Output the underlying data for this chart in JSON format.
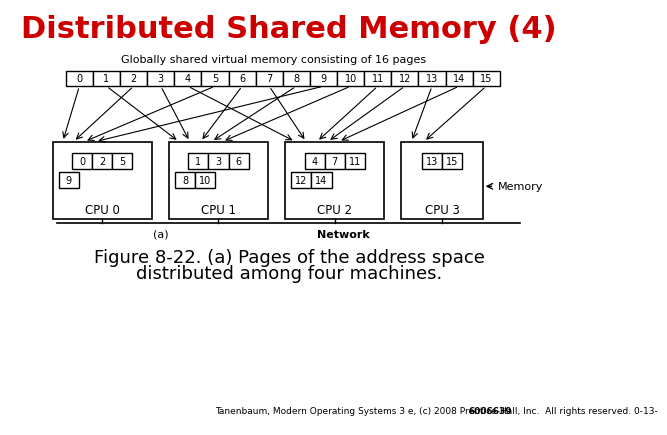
{
  "title": "Distributed Shared Memory (4)",
  "title_color": "#cc0000",
  "title_fontsize": 22,
  "global_label": "Globally shared virtual memory consisting of 16 pages",
  "pages": [
    "0",
    "1",
    "2",
    "3",
    "4",
    "5",
    "6",
    "7",
    "8",
    "9",
    "10",
    "11",
    "12",
    "13",
    "14",
    "15"
  ],
  "cpu_labels": [
    "CPU 0",
    "CPU 1",
    "CPU 2",
    "CPU 3"
  ],
  "cpu_page_rows": [
    [
      [
        "0",
        "2",
        "5"
      ],
      [
        "9"
      ]
    ],
    [
      [
        "1",
        "3",
        "6"
      ],
      [
        "8",
        "10"
      ]
    ],
    [
      [
        "4",
        "7",
        "11"
      ],
      [
        "12",
        "14"
      ]
    ],
    [
      [
        "13",
        "15"
      ],
      []
    ]
  ],
  "page_to_cpu": {
    "0": 0,
    "2": 0,
    "5": 0,
    "9": 0,
    "1": 1,
    "3": 1,
    "6": 1,
    "8": 1,
    "10": 1,
    "4": 2,
    "7": 2,
    "11": 2,
    "12": 2,
    "14": 2,
    "13": 3,
    "15": 3
  },
  "figure_caption_line1": "Figure 8-22. (a) Pages of the address space",
  "figure_caption_line2": "distributed among four machines.",
  "footer_normal": "Tanenbaum, Modern Operating Systems 3 e, (c) 2008 Prentice-Hall, Inc.  All rights reserved. 0-13-",
  "footer_bold": "6006639",
  "network_label": "Network",
  "memory_label": "Memory",
  "label_a": "(a)",
  "bg_color": "#ffffff"
}
